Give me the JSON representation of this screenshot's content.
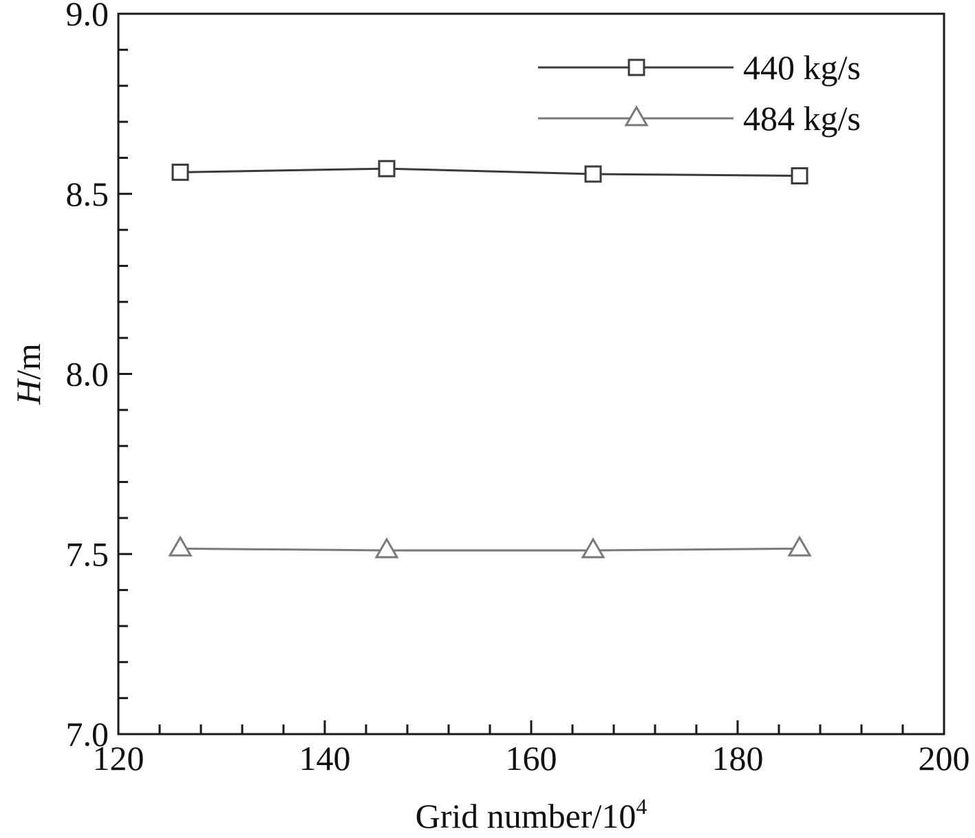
{
  "chart_data": {
    "type": "line",
    "title": "",
    "xlabel": "Grid number/10",
    "xlabel_sup": "4",
    "ylabel_italic": "H",
    "ylabel_rest": "/m",
    "xlim": [
      120,
      200
    ],
    "ylim": [
      7.0,
      9.0
    ],
    "x_ticks": [
      120,
      140,
      160,
      180,
      200
    ],
    "x_tick_labels": [
      "120",
      "140",
      "160",
      "180",
      "200"
    ],
    "x_minor_step": 4,
    "y_ticks": [
      7.0,
      7.5,
      8.0,
      8.5,
      9.0
    ],
    "y_tick_labels": [
      "7.0",
      "7.5",
      "8.0",
      "8.5",
      "9.0"
    ],
    "y_minor_step": 0.1,
    "grid": false,
    "legend_position": "top-right",
    "series": [
      {
        "name": "440 kg/s",
        "marker": "square",
        "color": "#3a3a3a",
        "x": [
          126,
          146,
          166,
          186
        ],
        "y": [
          8.56,
          8.57,
          8.555,
          8.55
        ]
      },
      {
        "name": "484 kg/s",
        "marker": "triangle",
        "color": "#7a7a7a",
        "x": [
          126,
          146,
          166,
          186
        ],
        "y": [
          7.515,
          7.51,
          7.51,
          7.515
        ]
      }
    ]
  }
}
